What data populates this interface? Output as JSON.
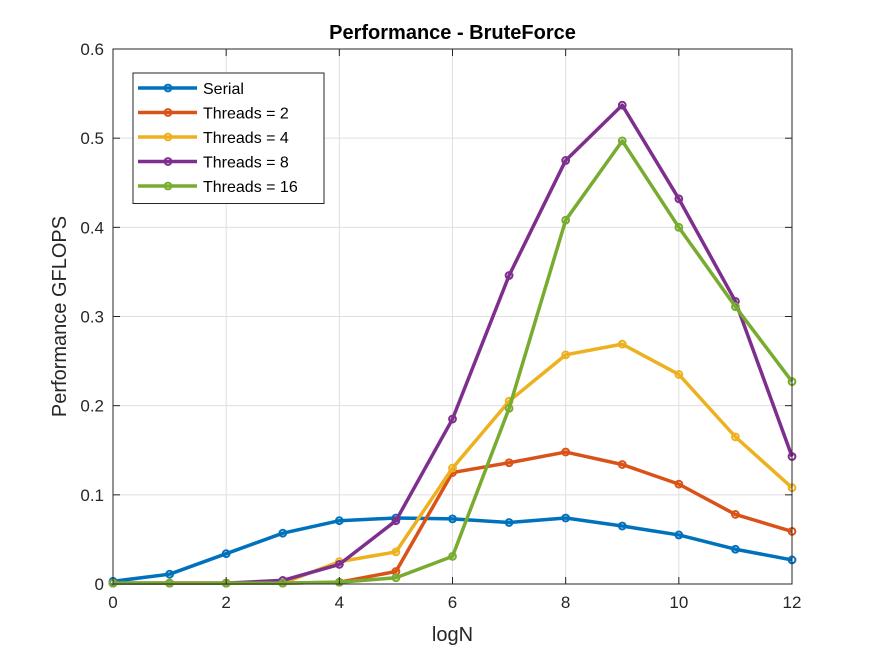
{
  "chart_data": {
    "type": "line",
    "title": "Performance - BruteForce",
    "xlabel": "logN",
    "ylabel": "Performance GFLOPS",
    "xlim": [
      0,
      12
    ],
    "ylim": [
      0,
      0.6
    ],
    "xticks": [
      0,
      2,
      4,
      6,
      8,
      10,
      12
    ],
    "yticks": [
      0,
      0.1,
      0.2,
      0.3,
      0.4,
      0.5,
      0.6
    ],
    "ytick_labels": [
      "0",
      "0.1",
      "0.2",
      "0.3",
      "0.4",
      "0.5",
      "0.6"
    ],
    "xtick_labels": [
      "0",
      "2",
      "4",
      "6",
      "8",
      "10",
      "12"
    ],
    "grid": true,
    "legend_position": "top-left",
    "x": [
      0,
      1,
      2,
      3,
      4,
      5,
      6,
      7,
      8,
      9,
      10,
      11,
      12
    ],
    "series": [
      {
        "name": "Serial",
        "color": "#0072BD",
        "values": [
          0.003,
          0.011,
          0.034,
          0.057,
          0.071,
          0.074,
          0.073,
          0.069,
          0.074,
          0.065,
          0.055,
          0.039,
          0.027
        ]
      },
      {
        "name": "Threads = 2",
        "color": "#D95319",
        "values": [
          0.001,
          0.001,
          0.001,
          0.001,
          0.002,
          0.014,
          0.125,
          0.136,
          0.148,
          0.134,
          0.112,
          0.078,
          0.059
        ]
      },
      {
        "name": "Threads = 4",
        "color": "#EDB120",
        "values": [
          0.001,
          0.001,
          0.001,
          0.001,
          0.025,
          0.036,
          0.13,
          0.205,
          0.257,
          0.269,
          0.235,
          0.165,
          0.108
        ]
      },
      {
        "name": "Threads = 8",
        "color": "#7E2F8E",
        "values": [
          0.001,
          0.001,
          0.001,
          0.004,
          0.022,
          0.071,
          0.185,
          0.346,
          0.475,
          0.537,
          0.432,
          0.317,
          0.143
        ]
      },
      {
        "name": "Threads = 16",
        "color": "#77AC30",
        "values": [
          0.001,
          0.001,
          0.001,
          0.001,
          0.002,
          0.007,
          0.031,
          0.197,
          0.408,
          0.497,
          0.4,
          0.311,
          0.227
        ]
      }
    ]
  }
}
